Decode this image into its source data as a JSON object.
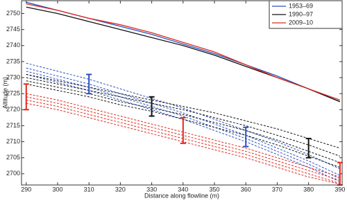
{
  "chart_data": {
    "type": "line",
    "x_label": "Distance along flowline (m)",
    "y_label": "Altitude (m)",
    "x": [
      290,
      300,
      310,
      320,
      330,
      340,
      350,
      360,
      370,
      380,
      390
    ],
    "xlim": [
      288.5,
      390.7
    ],
    "xticks": [
      290,
      300,
      310,
      320,
      330,
      340,
      350,
      360,
      370,
      380,
      390
    ],
    "ylim": [
      2696.5,
      2754
    ],
    "yticks": [
      2700,
      2705,
      2710,
      2715,
      2720,
      2725,
      2730,
      2735,
      2740,
      2745,
      2750
    ],
    "legend": "top-right",
    "series": [
      {
        "name": "1953–69",
        "color": "#2a4fc4",
        "values": [
          2753.5,
          2751,
          2748.5,
          2746,
          2743.5,
          2740.5,
          2737.5,
          2734,
          2730.5,
          2726.5,
          2722.5
        ],
        "dashed": [
          [
            2734.5,
            2732,
            2729.5,
            2726.5,
            2723.5,
            2720.5,
            2717,
            2713.5,
            2710,
            2706,
            2701.5
          ],
          [
            2733,
            2730.5,
            2728,
            2725,
            2722,
            2719,
            2715.5,
            2712,
            2708,
            2704,
            2699.5
          ],
          [
            2732,
            2729.5,
            2727,
            2724,
            2721,
            2718,
            2714.5,
            2711,
            2707,
            2703,
            2698.5
          ],
          [
            2731,
            2728.5,
            2726,
            2723,
            2720,
            2717,
            2713.5,
            2710,
            2706,
            2702,
            2697.5
          ]
        ],
        "error_bars": {
          "x": [
            310,
            360
          ],
          "values": [
            2728,
            2711.5
          ],
          "errors": [
            3,
            3
          ]
        }
      },
      {
        "name": "1990–97",
        "color": "#111111",
        "values": [
          2752,
          2750,
          2747.5,
          2745,
          2742.5,
          2740,
          2737,
          2733.5,
          2730,
          2726.5,
          2722.5
        ],
        "dashed": [
          [
            2731,
            2729,
            2727,
            2725,
            2723,
            2721,
            2719,
            2716.5,
            2714,
            2711,
            2708
          ],
          [
            2730,
            2728,
            2726,
            2724,
            2722,
            2720,
            2717.5,
            2715,
            2712,
            2709,
            2705.5
          ],
          [
            2729,
            2727,
            2725,
            2722.5,
            2720.5,
            2718.5,
            2716,
            2713.5,
            2710.5,
            2707,
            2703.5
          ],
          [
            2728,
            2726,
            2724,
            2721.5,
            2719.5,
            2717,
            2714.5,
            2712,
            2709,
            2705.5,
            2702
          ]
        ],
        "error_bars": {
          "x": [
            330,
            380
          ],
          "values": [
            2721,
            2708
          ],
          "errors": [
            3,
            3
          ]
        }
      },
      {
        "name": "2009–10",
        "color": "#e0281e",
        "values": [
          2753,
          2751,
          2748.5,
          2746.5,
          2744,
          2741,
          2738,
          2734,
          2730,
          2726.5,
          2723
        ],
        "dashed": [
          [
            2725,
            2723,
            2720.5,
            2718,
            2715.5,
            2713,
            2710.5,
            2708,
            2705,
            2702,
            2699
          ],
          [
            2724,
            2722,
            2719.5,
            2717,
            2714.5,
            2712,
            2709.5,
            2707,
            2704,
            2701,
            2698
          ],
          [
            2723,
            2721,
            2718.5,
            2716,
            2713.5,
            2711,
            2708.5,
            2706,
            2703,
            2700,
            2697
          ],
          [
            2722,
            2720,
            2717.5,
            2715,
            2712.5,
            2710,
            2707.5,
            2705,
            2702,
            2699,
            2696.8
          ]
        ],
        "error_bars": {
          "x": [
            290,
            340,
            390
          ],
          "values": [
            2724,
            2713.5,
            2700
          ],
          "errors": [
            4,
            4,
            3.5
          ]
        }
      }
    ]
  }
}
